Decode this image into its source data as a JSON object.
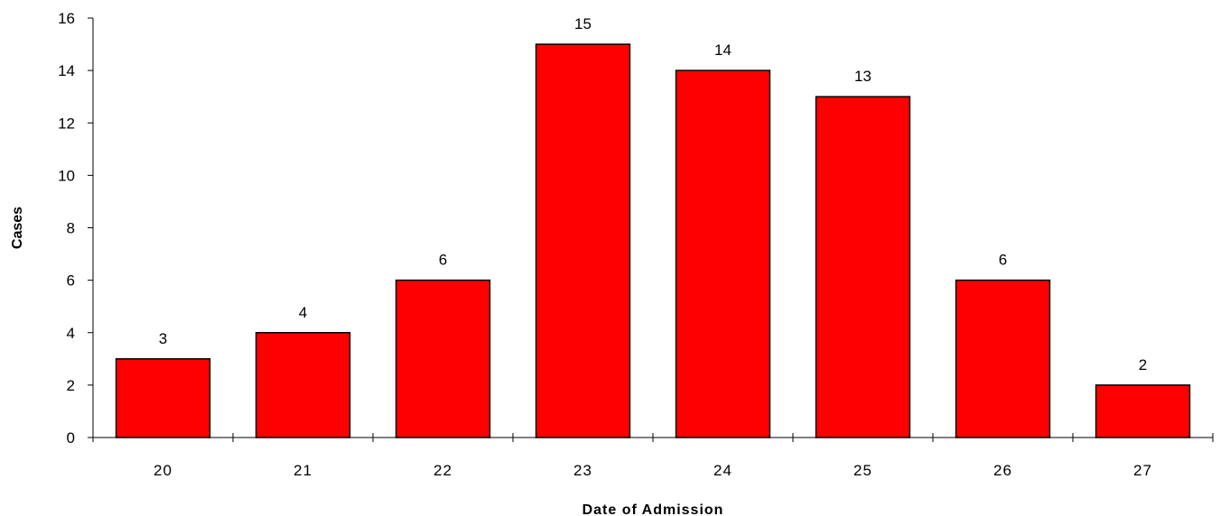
{
  "chart_data": {
    "type": "bar",
    "title": "",
    "xlabel": "Date of Admission",
    "ylabel": "Cases",
    "categories": [
      "20",
      "21",
      "22",
      "23",
      "24",
      "25",
      "26",
      "27"
    ],
    "values": [
      3,
      4,
      6,
      15,
      14,
      13,
      6,
      2
    ],
    "ylim": [
      0,
      16
    ],
    "yticks": [
      0,
      2,
      4,
      6,
      8,
      10,
      12,
      14,
      16
    ],
    "grid": false,
    "legend": "none",
    "bar_color": "#ff0000",
    "data_labels": true
  }
}
